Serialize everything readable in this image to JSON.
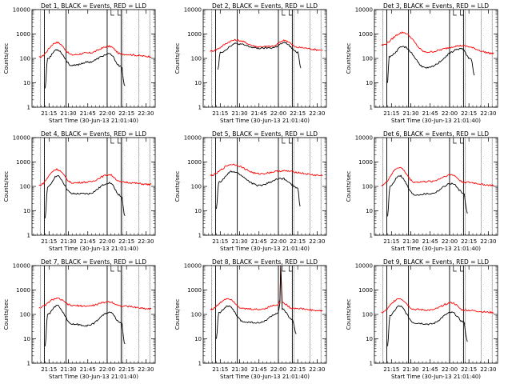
{
  "chart_data": {
    "type": "line",
    "x_ticks": [
      "21:15",
      "21:30",
      "21:45",
      "22:00",
      "22:15",
      "22:30"
    ],
    "y_ticks": [
      "1",
      "10",
      "100",
      "1000",
      "10000"
    ],
    "y_scale": "log",
    "ylim": [
      1,
      10000
    ],
    "ylabel": "Counts/sec",
    "xlabel": "Start Time (30-Jun-13 21:01:40)",
    "series_colors": {
      "events": "#000000",
      "lld": "#ff0000"
    },
    "panels": [
      {
        "title": "Det 1",
        "legend": "BLACK = Events, RED = LLD",
        "events": [
          [
            21.2,
            6
          ],
          [
            21.23,
            100
          ],
          [
            21.35,
            230
          ],
          [
            21.55,
            50
          ],
          [
            21.75,
            70
          ],
          [
            22.03,
            150
          ],
          [
            22.18,
            45
          ],
          [
            22.23,
            7
          ]
        ],
        "lld": [
          [
            21.12,
            110
          ],
          [
            21.35,
            450
          ],
          [
            21.55,
            140
          ],
          [
            21.75,
            165
          ],
          [
            22.03,
            310
          ],
          [
            22.18,
            150
          ],
          [
            22.57,
            120
          ]
        ]
      },
      {
        "title": "Det 2",
        "legend": "BLACK = Events, RED = LLD",
        "events": [
          [
            21.22,
            35
          ],
          [
            21.25,
            180
          ],
          [
            21.45,
            400
          ],
          [
            21.75,
            260
          ],
          [
            21.92,
            270
          ],
          [
            22.08,
            430
          ],
          [
            22.25,
            180
          ],
          [
            22.29,
            40
          ]
        ],
        "lld": [
          [
            21.12,
            200
          ],
          [
            21.45,
            560
          ],
          [
            21.75,
            300
          ],
          [
            21.92,
            310
          ],
          [
            22.08,
            550
          ],
          [
            22.25,
            280
          ],
          [
            22.57,
            220
          ]
        ]
      },
      {
        "title": "Det 3",
        "legend": "BLACK = Events, RED = LLD",
        "events": [
          [
            21.2,
            10
          ],
          [
            21.22,
            120
          ],
          [
            21.4,
            300
          ],
          [
            21.7,
            40
          ],
          [
            22.15,
            250
          ],
          [
            22.28,
            90
          ],
          [
            22.32,
            20
          ]
        ],
        "lld": [
          [
            21.12,
            350
          ],
          [
            21.4,
            1150
          ],
          [
            21.7,
            180
          ],
          [
            22.15,
            330
          ],
          [
            22.57,
            160
          ]
        ]
      },
      {
        "title": "Det 4",
        "legend": "BLACK = Events, RED = LLD",
        "events": [
          [
            21.2,
            5
          ],
          [
            21.23,
            90
          ],
          [
            21.35,
            270
          ],
          [
            21.55,
            50
          ],
          [
            21.75,
            50
          ],
          [
            22.03,
            140
          ],
          [
            22.18,
            40
          ],
          [
            22.23,
            6
          ]
        ],
        "lld": [
          [
            21.12,
            110
          ],
          [
            21.35,
            500
          ],
          [
            21.55,
            140
          ],
          [
            21.75,
            150
          ],
          [
            22.03,
            300
          ],
          [
            22.18,
            150
          ],
          [
            22.57,
            120
          ]
        ]
      },
      {
        "title": "Det 5",
        "legend": "BLACK = Events, RED = LLD",
        "events": [
          [
            21.2,
            12
          ],
          [
            21.23,
            150
          ],
          [
            21.4,
            400
          ],
          [
            21.75,
            110
          ],
          [
            22.05,
            210
          ],
          [
            22.25,
            90
          ],
          [
            22.28,
            15
          ]
        ],
        "lld": [
          [
            21.12,
            280
          ],
          [
            21.4,
            800
          ],
          [
            21.75,
            330
          ],
          [
            22.05,
            430
          ],
          [
            22.57,
            280
          ]
        ]
      },
      {
        "title": "Det 6",
        "legend": "BLACK = Events, RED = LLD",
        "events": [
          [
            21.2,
            6
          ],
          [
            21.23,
            100
          ],
          [
            21.35,
            280
          ],
          [
            21.55,
            45
          ],
          [
            21.75,
            50
          ],
          [
            22.03,
            130
          ],
          [
            22.18,
            55
          ],
          [
            22.23,
            8
          ]
        ],
        "lld": [
          [
            21.12,
            110
          ],
          [
            21.35,
            600
          ],
          [
            21.55,
            150
          ],
          [
            21.75,
            160
          ],
          [
            22.03,
            300
          ],
          [
            22.18,
            150
          ],
          [
            22.57,
            110
          ]
        ]
      },
      {
        "title": "Det 7",
        "legend": "BLACK = Events, RED = LLD",
        "events": [
          [
            21.2,
            5
          ],
          [
            21.23,
            100
          ],
          [
            21.35,
            230
          ],
          [
            21.55,
            40
          ],
          [
            21.75,
            35
          ],
          [
            22.03,
            120
          ],
          [
            22.18,
            45
          ],
          [
            22.23,
            6
          ]
        ],
        "lld": [
          [
            21.12,
            190
          ],
          [
            21.35,
            450
          ],
          [
            21.55,
            230
          ],
          [
            21.75,
            220
          ],
          [
            22.03,
            330
          ],
          [
            22.18,
            220
          ],
          [
            22.57,
            170
          ]
        ]
      },
      {
        "title": "Det 8",
        "legend": "BLACK = Events, RED = LLD",
        "events": [
          [
            21.2,
            10
          ],
          [
            21.23,
            120
          ],
          [
            21.35,
            220
          ],
          [
            21.55,
            50
          ],
          [
            21.75,
            45
          ],
          [
            22.0,
            110
          ],
          [
            22.02,
            300
          ],
          [
            22.03,
            10000
          ],
          [
            22.05,
            160
          ],
          [
            22.18,
            60
          ],
          [
            22.23,
            15
          ]
        ],
        "lld": [
          [
            21.12,
            160
          ],
          [
            21.35,
            450
          ],
          [
            21.55,
            170
          ],
          [
            21.75,
            160
          ],
          [
            22.0,
            250
          ],
          [
            22.02,
            400
          ],
          [
            22.03,
            10000
          ],
          [
            22.05,
            300
          ],
          [
            22.18,
            180
          ],
          [
            22.57,
            140
          ]
        ]
      },
      {
        "title": "Det 9",
        "legend": "BLACK = Events, RED = LLD",
        "events": [
          [
            21.2,
            5
          ],
          [
            21.23,
            90
          ],
          [
            21.35,
            220
          ],
          [
            21.55,
            45
          ],
          [
            21.75,
            40
          ],
          [
            22.03,
            120
          ],
          [
            22.18,
            50
          ],
          [
            22.23,
            8
          ]
        ],
        "lld": [
          [
            21.12,
            120
          ],
          [
            21.35,
            450
          ],
          [
            21.55,
            160
          ],
          [
            21.75,
            150
          ],
          [
            22.03,
            300
          ],
          [
            22.18,
            150
          ],
          [
            22.57,
            120
          ]
        ]
      }
    ]
  }
}
